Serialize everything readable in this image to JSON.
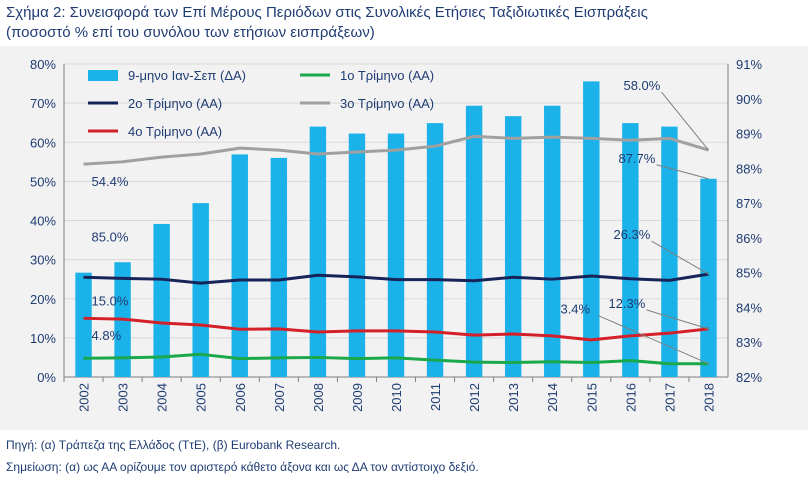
{
  "header": {
    "title": "Σχήμα 2: Συνεισφορά των Επί Μέρους Περιόδων στις Συνολικές Ετήσιες Ταξιδιωτικές Εισπράξεις",
    "subtitle": "(ποσοστό % επί του συνόλου των ετήσιων εισπράξεων)"
  },
  "footer": {
    "source": "Πηγή: (α) Τράπεζα της Ελλάδος (ΤτΕ), (β) Eurobank Research.",
    "note": "Σημείωση: (α) ως ΑΑ ορίζουμε τον αριστερό κάθετο άξονα και ως ΔΑ τον αντίστοιχο δεξιό."
  },
  "chart_data": {
    "type": "bar",
    "categories": [
      "2002",
      "2003",
      "2004",
      "2005",
      "2006",
      "2007",
      "2008",
      "2009",
      "2010",
      "2011",
      "2012",
      "2013",
      "2014",
      "2015",
      "2016",
      "2017",
      "2018"
    ],
    "left_axis": {
      "min": 0,
      "max": 80,
      "ticks": [
        "0%",
        "10%",
        "20%",
        "30%",
        "40%",
        "50%",
        "60%",
        "70%",
        "80%"
      ]
    },
    "right_axis": {
      "min": 82,
      "max": 91,
      "ticks": [
        "82%",
        "83%",
        "84%",
        "85%",
        "86%",
        "87%",
        "88%",
        "89%",
        "90%",
        "91%"
      ]
    },
    "grid": true,
    "legend_placement": "top-left",
    "series": [
      {
        "name": "9-μηνο Ιαν-Σεπ (ΔΑ)",
        "type": "bar",
        "axis": "right",
        "color": "#1bb2ea",
        "values": [
          85.0,
          85.3,
          86.4,
          87.0,
          88.4,
          88.3,
          89.2,
          89.0,
          89.0,
          89.3,
          89.8,
          89.5,
          89.8,
          90.5,
          89.3,
          89.2,
          87.7
        ]
      },
      {
        "name": "1ο Τρίμηνο (ΑΑ)",
        "type": "line",
        "axis": "left",
        "color": "#1aa84b",
        "values": [
          4.8,
          4.9,
          5.1,
          5.8,
          4.7,
          4.9,
          5.0,
          4.7,
          4.9,
          4.3,
          3.8,
          3.7,
          3.9,
          3.7,
          4.2,
          3.4,
          3.4
        ]
      },
      {
        "name": "2ο Τρίμηνο (ΑΑ)",
        "type": "line",
        "axis": "left",
        "color": "#16245a",
        "values": [
          25.5,
          25.2,
          25.0,
          24.0,
          24.8,
          24.8,
          26.0,
          25.6,
          24.9,
          24.9,
          24.6,
          25.5,
          25.0,
          25.8,
          25.1,
          24.7,
          26.3
        ]
      },
      {
        "name": "3ο Τρίμηνο (ΑΑ)",
        "type": "line",
        "axis": "left",
        "color": "#a0a0a0",
        "values": [
          54.4,
          55.0,
          56.2,
          57.0,
          58.5,
          58.0,
          57.0,
          57.5,
          58.0,
          59.0,
          61.5,
          61.0,
          61.3,
          61.0,
          60.5,
          61.0,
          58.0
        ]
      },
      {
        "name": "4ο Τρίμηνο (ΑΑ)",
        "type": "line",
        "axis": "left",
        "color": "#d42029",
        "values": [
          15.0,
          14.8,
          13.8,
          13.3,
          12.2,
          12.3,
          11.5,
          11.8,
          11.8,
          11.5,
          10.7,
          11.0,
          10.5,
          9.5,
          10.5,
          11.2,
          12.3
        ]
      }
    ],
    "annotations": [
      {
        "text": "54.4%",
        "series": "3ο Τρίμηνο (ΑΑ)",
        "index": 0
      },
      {
        "text": "85.0%",
        "series": "9-μηνο Ιαν-Σεπ (ΔΑ)",
        "index": 0
      },
      {
        "text": "15.0%",
        "series": "4ο Τρίμηνο (ΑΑ)",
        "index": 0
      },
      {
        "text": "4.8%",
        "series": "1ο Τρίμηνο (ΑΑ)",
        "index": 0
      },
      {
        "text": "58.0%",
        "series": "3ο Τρίμηνο (ΑΑ)",
        "index": 16
      },
      {
        "text": "87.7%",
        "series": "9-μηνο Ιαν-Σεπ (ΔΑ)",
        "index": 16
      },
      {
        "text": "26.3%",
        "series": "2ο Τρίμηνο (ΑΑ)",
        "index": 16
      },
      {
        "text": "12.3%",
        "series": "4ο Τρίμηνο (ΑΑ)",
        "index": 16
      },
      {
        "text": "3.4%",
        "series": "1ο Τρίμηνο (ΑΑ)",
        "index": 16
      }
    ]
  }
}
